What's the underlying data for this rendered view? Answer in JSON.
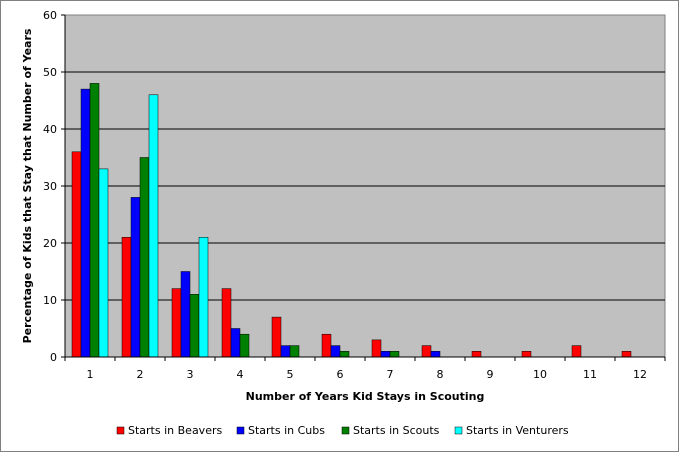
{
  "chart_data": {
    "type": "bar",
    "title": "",
    "xlabel": "Number of Years Kid Stays in Scouting",
    "ylabel": "Percentage of Kids that Stay that Number of Years",
    "categories": [
      "1",
      "2",
      "3",
      "4",
      "5",
      "6",
      "7",
      "8",
      "9",
      "10",
      "11",
      "12"
    ],
    "ylim": [
      0,
      60
    ],
    "yticks": [
      "0",
      "10",
      "20",
      "30",
      "40",
      "50",
      "60"
    ],
    "grid": true,
    "legend_position": "bottom",
    "plot_background": "#c0c0c0",
    "series": [
      {
        "name": "Starts in Beavers",
        "color": "#ff0000",
        "values": [
          36,
          21,
          12,
          12,
          7,
          4,
          3,
          2,
          1,
          1,
          2,
          1
        ]
      },
      {
        "name": "Starts in Cubs",
        "color": "#0000ff",
        "values": [
          47,
          28,
          15,
          5,
          2,
          2,
          1,
          1,
          0,
          0,
          0,
          0
        ]
      },
      {
        "name": "Starts in Scouts",
        "color": "#008000",
        "values": [
          48,
          35,
          11,
          4,
          2,
          1,
          1,
          0,
          0,
          0,
          0,
          0
        ]
      },
      {
        "name": "Starts in Venturers",
        "color": "#00ffff",
        "values": [
          33,
          46,
          21,
          0,
          0,
          0,
          0,
          0,
          0,
          0,
          0,
          0
        ]
      }
    ]
  }
}
